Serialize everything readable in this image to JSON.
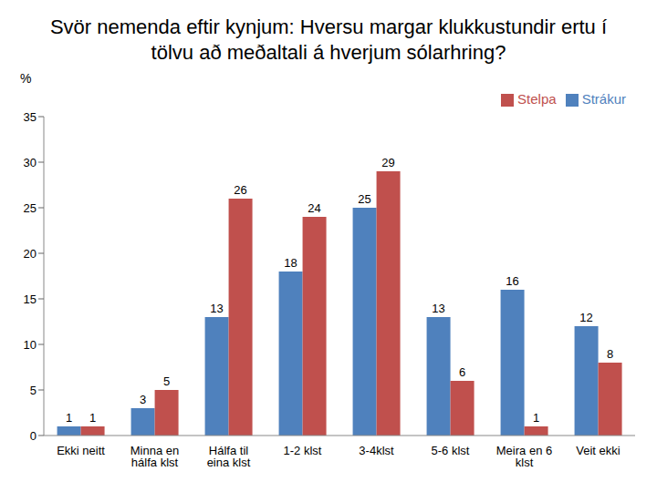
{
  "chart_data": {
    "type": "bar",
    "title": "Svör nemenda eftir kynjum: Hversu margar klukkustundir ertu í tölvu að meðaltali á hverjum sólarhring?",
    "y_label": "%",
    "categories": [
      "Ekki neitt",
      "Minna en hálfa klst",
      "Hálfa til eina klst",
      "1-2 klst",
      "3-4klst",
      "5-6 klst",
      "Meira en 6 klst",
      "Veit ekki"
    ],
    "series": [
      {
        "name": "Strákur",
        "color": "#4f81bd",
        "values": [
          1,
          3,
          13,
          18,
          25,
          13,
          16,
          12
        ]
      },
      {
        "name": "Stelpa",
        "color": "#c0504d",
        "values": [
          1,
          5,
          26,
          24,
          29,
          6,
          1,
          8
        ]
      }
    ],
    "ylim": [
      0,
      35
    ],
    "yticks": [
      0,
      5,
      10,
      15,
      20,
      25,
      30,
      35
    ],
    "grid": false,
    "legend": "top-right",
    "data_labels": true
  }
}
